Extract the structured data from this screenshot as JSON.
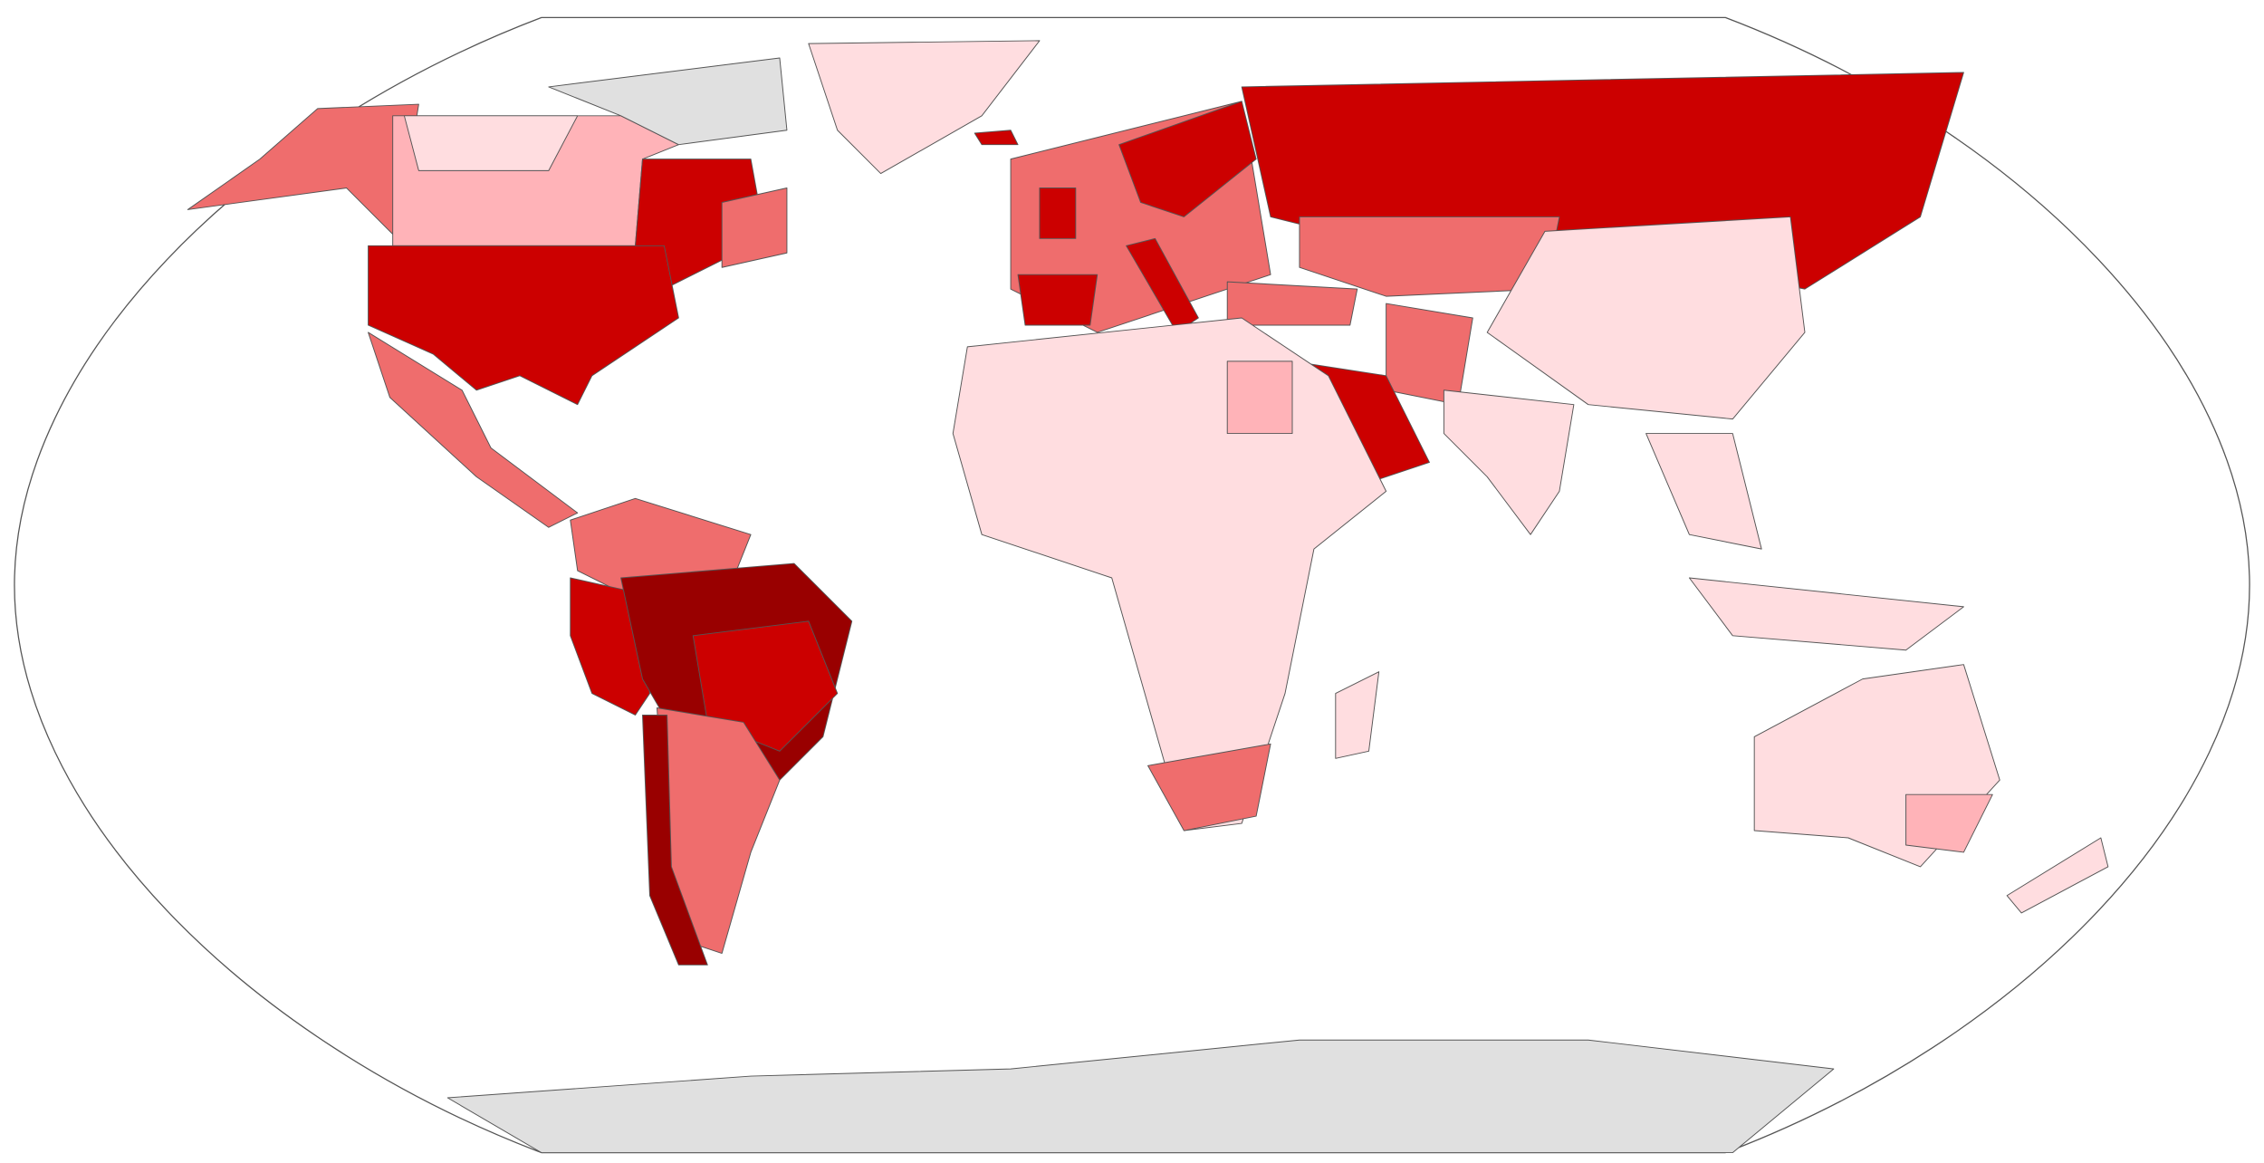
{
  "map": {
    "palette": [
      "#ffdde0",
      "#ffb3b8",
      "#ef6d6d",
      "#cc0000",
      "#990000",
      "#e0e0e0"
    ],
    "ocean": "#ffffff",
    "border": "#555555"
  }
}
